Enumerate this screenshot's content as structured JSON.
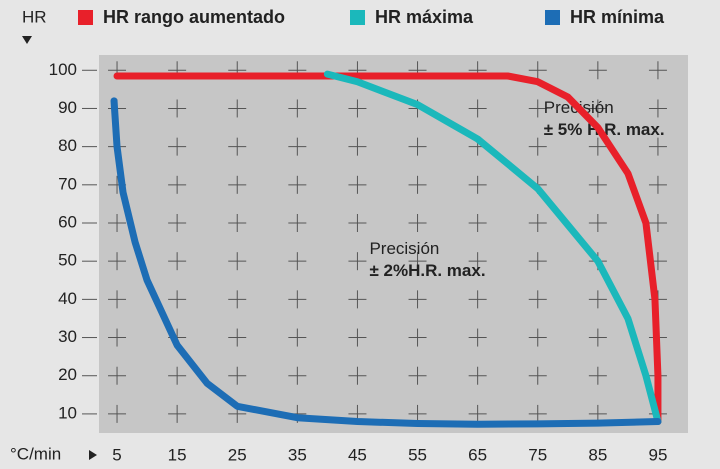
{
  "chart_data": {
    "type": "line",
    "y_label": "HR",
    "x_label": "°C/min",
    "xlim": [
      2,
      100
    ],
    "ylim": [
      5,
      104
    ],
    "xticks": [
      5,
      15,
      25,
      35,
      45,
      55,
      65,
      75,
      85,
      95
    ],
    "yticks": [
      10,
      20,
      30,
      40,
      50,
      60,
      70,
      80,
      90,
      100
    ],
    "series": [
      {
        "name": "HR rango aumentado",
        "color": "#e8202a",
        "x": [
          5,
          70,
          75,
          80,
          85,
          90,
          93,
          94.5,
          95,
          95
        ],
        "values": [
          98.5,
          98.5,
          97,
          93,
          85,
          73,
          60,
          40,
          20,
          8
        ]
      },
      {
        "name": "HR máxima",
        "color": "#1bb8bb",
        "x": [
          40,
          45,
          55,
          65,
          75,
          85,
          90,
          93,
          95
        ],
        "values": [
          99,
          97,
          91,
          82,
          69,
          50,
          35,
          20,
          8
        ]
      },
      {
        "name": "HR mínima",
        "color": "#1d6db5",
        "x": [
          4.5,
          5,
          6,
          8,
          10,
          15,
          20,
          25,
          35,
          45,
          55,
          65,
          75,
          85,
          95
        ],
        "values": [
          92,
          80,
          68,
          55,
          45,
          28,
          18,
          12,
          9,
          8,
          7.5,
          7.3,
          7.4,
          7.6,
          8
        ]
      }
    ],
    "annotations": [
      {
        "lines": [
          "Precisión",
          "± 5% H.R. max."
        ],
        "x": 76,
        "y": 90
      },
      {
        "lines": [
          "Precisión",
          "± 2%H.R. max."
        ],
        "x": 47,
        "y": 53
      }
    ]
  }
}
